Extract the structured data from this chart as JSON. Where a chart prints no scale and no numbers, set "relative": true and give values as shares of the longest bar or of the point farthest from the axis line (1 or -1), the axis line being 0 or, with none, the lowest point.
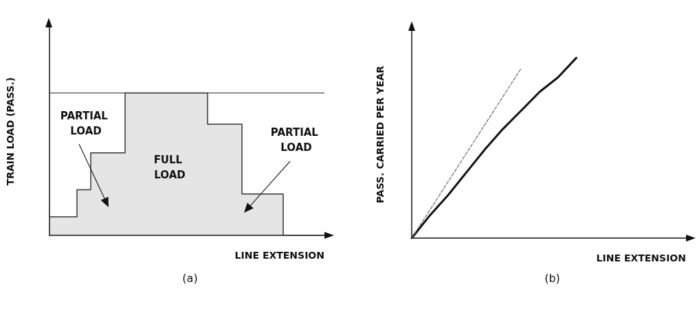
{
  "chart_data": [
    {
      "type": "step",
      "title": "(a)",
      "xlabel": "LINE EXTENSION",
      "ylabel": "TRAIN LOAD (PASS.)",
      "relative": true,
      "categories": [
        null,
        null,
        null,
        null,
        null,
        null,
        null,
        null,
        null,
        null,
        null,
        null,
        null,
        null,
        null,
        null,
        null,
        null,
        null,
        null,
        null,
        null,
        null,
        null,
        null,
        null,
        null,
        null,
        null,
        null,
        null,
        null,
        null,
        null,
        null,
        null,
        null,
        null,
        null,
        null,
        null
      ],
      "values": [
        0.13,
        0.13,
        0.13,
        0.13,
        0.32,
        0.32,
        0.58,
        0.58,
        0.58,
        0.58,
        0.58,
        1,
        1,
        1,
        1,
        1,
        1,
        1,
        1,
        1,
        1,
        1,
        1,
        0.78,
        0.78,
        0.78,
        0.78,
        0.78,
        0.29,
        0.29,
        0.29,
        0.29,
        0.29,
        0.29,
        0,
        0,
        0,
        0,
        0,
        0,
        0
      ],
      "color": "#333333",
      "ref_lines": [
        {
          "axis": "y",
          "value": 1,
          "color": "#222222"
        }
      ],
      "annotations": [
        "PARTIAL LOAD",
        "FULL LOAD",
        "PARTIAL LOAD"
      ]
    },
    {
      "type": "line",
      "title": "(b)",
      "xlabel": "LINE EXTENSION",
      "ylabel": "PASS. CARRIED PER YEAR",
      "relative": true,
      "categories": [
        null,
        null,
        null,
        null,
        null,
        null,
        null,
        null,
        null,
        null,
        null,
        null,
        null,
        null,
        null,
        null
      ],
      "series": [
        {
          "color": "#111111",
          "values": [
            0,
            0.127,
            0.24,
            0.366,
            0.492,
            0.607,
            0.709,
            0.812,
            0.892,
            1,
            null,
            null,
            null,
            null,
            null,
            null
          ]
        },
        {
          "color": "#666666",
          "type": "line",
          "line_style": "dashed",
          "values": [
            0,
            0.157,
            0.315,
            0.472,
            0.63,
            0.787,
            0.945,
            null,
            null,
            null,
            null,
            null,
            null,
            null,
            null,
            null
          ]
        }
      ]
    }
  ]
}
